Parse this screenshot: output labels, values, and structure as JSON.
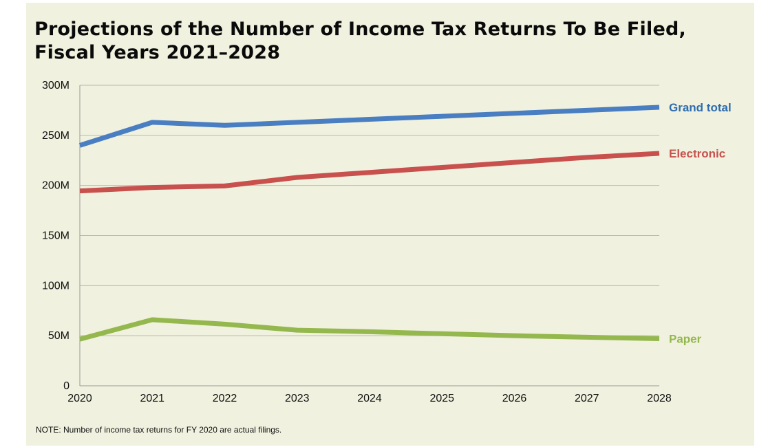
{
  "colors": {
    "background": "#f0f1de",
    "grid": "#b8b8b8",
    "grand_total": "#4a7ec2",
    "grand_total_label": "#2e6db0",
    "electronic": "#c8504d",
    "paper": "#94b84d"
  },
  "chart_data": {
    "type": "line",
    "title": [
      "Projections of the Number of Income Tax Returns To Be Filed,",
      "Fiscal Years 2021–2028"
    ],
    "x": [
      "2020",
      "2021",
      "2022",
      "2023",
      "2024",
      "2025",
      "2026",
      "2027",
      "2028"
    ],
    "y_ticks": [
      "0",
      "50M",
      "100M",
      "150M",
      "200M",
      "250M",
      "300M"
    ],
    "ylim": [
      0,
      300
    ],
    "y_unit": "millions",
    "grid": true,
    "legend": "inline-right",
    "series": [
      {
        "name": "Grand total",
        "color_key": "grand_total",
        "values": [
          240,
          263,
          260,
          263,
          266,
          269,
          272,
          275,
          278
        ]
      },
      {
        "name": "Electronic",
        "color_key": "electronic",
        "values": [
          194.5,
          198,
          199.5,
          208,
          213,
          218,
          223,
          228,
          232
        ]
      },
      {
        "name": "Paper",
        "color_key": "paper",
        "values": [
          46.5,
          66,
          61.5,
          55.5,
          54,
          52,
          50,
          48.5,
          47
        ]
      }
    ]
  },
  "note": "NOTE: Number of income tax returns for FY 2020 are actual filings."
}
